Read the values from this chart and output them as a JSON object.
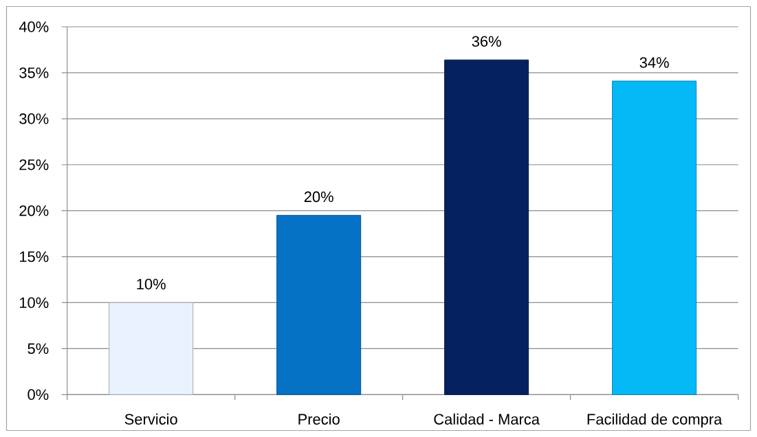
{
  "chart_data": {
    "type": "bar",
    "categories": [
      "Servicio",
      "Precio",
      "Calidad - Marca",
      "Facilidad de compra"
    ],
    "values": [
      10,
      19.5,
      36.4,
      34.1
    ],
    "value_labels": [
      "10%",
      "20%",
      "36%",
      "34%"
    ],
    "colors": [
      "#e9f2fc",
      "#0672c6",
      "#052160",
      "#05b9f7"
    ],
    "ylim": [
      0,
      40
    ],
    "yticks": [
      {
        "value": 0,
        "label": "0%"
      },
      {
        "value": 5,
        "label": "5%"
      },
      {
        "value": 10,
        "label": "10%"
      },
      {
        "value": 15,
        "label": "15%"
      },
      {
        "value": 20,
        "label": "20%"
      },
      {
        "value": 25,
        "label": "25%"
      },
      {
        "value": 30,
        "label": "30%"
      },
      {
        "value": 35,
        "label": "35%"
      },
      {
        "value": 40,
        "label": "40%"
      }
    ],
    "grid": "y"
  }
}
